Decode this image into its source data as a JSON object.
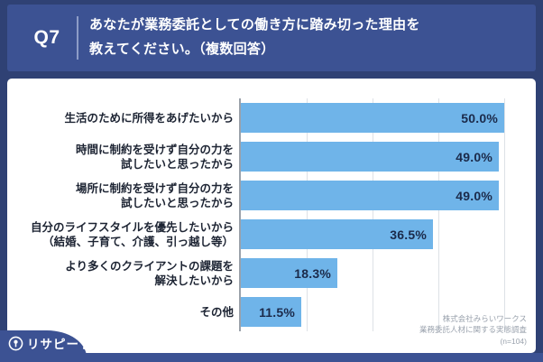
{
  "header": {
    "question_number": "Q7",
    "question_lines": [
      "あなたが業務委託としての働き方に踏み切った理由を",
      "教えてください。（複数回答）"
    ]
  },
  "chart_data": {
    "type": "bar",
    "orientation": "horizontal",
    "title": "",
    "categories": [
      [
        "生活のために所得をあげたいから"
      ],
      [
        "時間に制約を受けず自分の力を",
        "試したいと思ったから"
      ],
      [
        "場所に制約を受けず自分の力を",
        "試したいと思ったから"
      ],
      [
        "自分のライフスタイルを優先したいから",
        "（結婚、子育て、介護、引っ越し等）"
      ],
      [
        "より多くのクライアントの課題を",
        "解決したいから"
      ],
      [
        "その他"
      ]
    ],
    "values": [
      50.0,
      49.0,
      49.0,
      36.5,
      18.3,
      11.5
    ],
    "value_labels": [
      "50.0%",
      "49.0%",
      "49.0%",
      "36.5%",
      "18.3%",
      "11.5%"
    ],
    "xlim": [
      0,
      56
    ],
    "gridlines": [
      12.5,
      25,
      37.5,
      50
    ],
    "grid_on": true,
    "legend": "none",
    "bar_color": "#6fb4e9",
    "value_label_color": "#1b2a4a"
  },
  "footer": {
    "source_lines": [
      "株式会社みらいワークス",
      "業務委託人材に関する実態調査",
      "(n=104)"
    ]
  },
  "logo": {
    "text": "リサピー",
    "suffix": "。",
    "icon": "pin-circle-icon"
  },
  "colors": {
    "background_navy": "#2f4174",
    "panel_blue": "#3c5293",
    "bar_blue": "#6fb4e9",
    "card_white": "#ffffff"
  }
}
